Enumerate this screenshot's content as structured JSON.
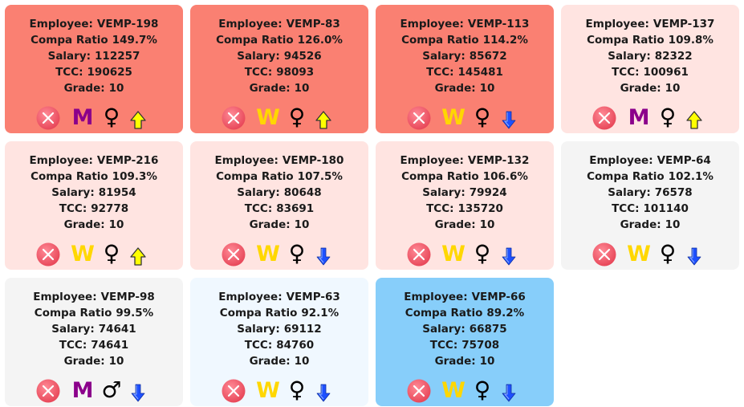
{
  "cards": [
    {
      "employee": "VEMP-198",
      "compa": "149.7%",
      "salary": "112257",
      "tcc": "190625",
      "grade": "10",
      "letter": "M",
      "gender": "♀",
      "arrow": "up",
      "bg": "#fa8072"
    },
    {
      "employee": "VEMP-83",
      "compa": "126.0%",
      "salary": "94526",
      "tcc": "98093",
      "grade": "10",
      "letter": "W",
      "gender": "♀",
      "arrow": "up",
      "bg": "#fa8072"
    },
    {
      "employee": "VEMP-113",
      "compa": "114.2%",
      "salary": "85672",
      "tcc": "145481",
      "grade": "10",
      "letter": "W",
      "gender": "♀",
      "arrow": "down",
      "bg": "#fa8072"
    },
    {
      "employee": "VEMP-137",
      "compa": "109.8%",
      "salary": "82322",
      "tcc": "100961",
      "grade": "10",
      "letter": "M",
      "gender": "♀",
      "arrow": "up",
      "bg": "#ffe4e1"
    },
    {
      "employee": "VEMP-216",
      "compa": "109.3%",
      "salary": "81954",
      "tcc": "92778",
      "grade": "10",
      "letter": "W",
      "gender": "♀",
      "arrow": "up",
      "bg": "#ffe4e1"
    },
    {
      "employee": "VEMP-180",
      "compa": "107.5%",
      "salary": "80648",
      "tcc": "83691",
      "grade": "10",
      "letter": "W",
      "gender": "♀",
      "arrow": "down",
      "bg": "#ffe4e1"
    },
    {
      "employee": "VEMP-132",
      "compa": "106.6%",
      "salary": "79924",
      "tcc": "135720",
      "grade": "10",
      "letter": "W",
      "gender": "♀",
      "arrow": "down",
      "bg": "#ffe4e1"
    },
    {
      "employee": "VEMP-64",
      "compa": "102.1%",
      "salary": "76578",
      "tcc": "101140",
      "grade": "10",
      "letter": "W",
      "gender": "♀",
      "arrow": "down",
      "bg": "#f4f4f4"
    },
    {
      "employee": "VEMP-98",
      "compa": "99.5%",
      "salary": "74641",
      "tcc": "74641",
      "grade": "10",
      "letter": "M",
      "gender": "♂",
      "arrow": "down",
      "bg": "#f4f4f4"
    },
    {
      "employee": "VEMP-63",
      "compa": "92.1%",
      "salary": "69112",
      "tcc": "84760",
      "grade": "10",
      "letter": "W",
      "gender": "♀",
      "arrow": "down",
      "bg": "#f0f8ff"
    },
    {
      "employee": "VEMP-66",
      "compa": "89.2%",
      "salary": "66875",
      "tcc": "75708",
      "grade": "10",
      "letter": "W",
      "gender": "♀",
      "arrow": "down",
      "bg": "#87cefa"
    }
  ],
  "labels": {
    "employee": "Employee:",
    "compa": "Compa Ratio",
    "salary": "Salary:",
    "tcc": "TCC:",
    "grade": "Grade:"
  },
  "colors": {
    "letter_M": "#8b008b",
    "letter_W": "#ffd700",
    "remove_icon": "#e8485a",
    "arrow_up": "#ffff00",
    "arrow_down": "#1e50ff"
  },
  "icons": {
    "remove": "x-circle-icon",
    "arrow_up": "arrow-up-icon",
    "arrow_down": "arrow-down-icon"
  }
}
